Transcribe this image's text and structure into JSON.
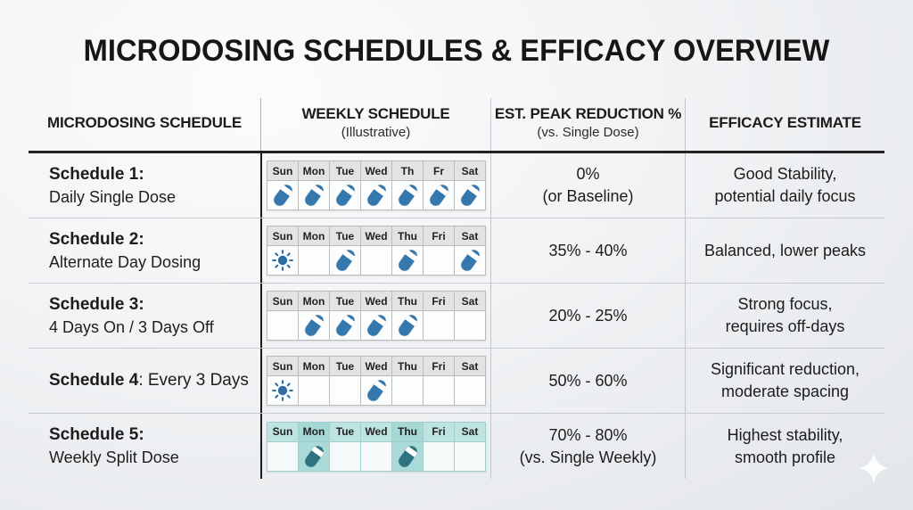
{
  "title": "MICRODOSING SCHEDULES & EFFICACY OVERVIEW",
  "header": {
    "col1": {
      "label": "MICRODOSING SCHEDULE",
      "sub": ""
    },
    "col2": {
      "label": "WEEKLY SCHEDULE",
      "sub": "(Illustrative)"
    },
    "col3": {
      "label": "EST. PEAK REDUCTION %",
      "sub": "(vs. Single Dose)"
    },
    "col4": {
      "label": "EFFICACY ESTIMATE",
      "sub": ""
    }
  },
  "rows": [
    {
      "label_bold": "Schedule 1:",
      "label_after": "",
      "label_line2": "Daily Single Dose",
      "days": [
        "Sun",
        "Mon",
        "Tue",
        "Wed",
        "Th",
        "Fr",
        "Sat"
      ],
      "doses": [
        "pill",
        "pill",
        "pill",
        "pill",
        "pill",
        "pill",
        "pill"
      ],
      "highlight": [],
      "theme": "blue",
      "reduction_line1": "0%",
      "reduction_line2": "(or Baseline)",
      "efficacy_line1": "Good Stability,",
      "efficacy_line2": "potential daily focus"
    },
    {
      "label_bold": "Schedule 2:",
      "label_after": "",
      "label_line2": "Alternate Day Dosing",
      "days": [
        "Sun",
        "Mon",
        "Tue",
        "Wed",
        "Thu",
        "Fri",
        "Sat"
      ],
      "doses": [
        "sun",
        "",
        "pill",
        "",
        "pill",
        "",
        "pill"
      ],
      "highlight": [],
      "theme": "blue",
      "reduction_line1": "35% - 40%",
      "reduction_line2": "",
      "efficacy_line1": "Balanced, lower peaks",
      "efficacy_line2": ""
    },
    {
      "label_bold": "Schedule 3:",
      "label_after": "",
      "label_line2": "4 Days On / 3 Days Off",
      "days": [
        "Sun",
        "Mon",
        "Tue",
        "Wed",
        "Thu",
        "Fri",
        "Sat"
      ],
      "doses": [
        "",
        "pill",
        "pill",
        "pill",
        "pill",
        "",
        ""
      ],
      "highlight": [],
      "theme": "blue",
      "reduction_line1": "20% - 25%",
      "reduction_line2": "",
      "efficacy_line1": "Strong focus,",
      "efficacy_line2": "requires off-days"
    },
    {
      "label_bold": "Schedule 4",
      "label_after": ": Every 3 Days",
      "label_line2": "",
      "days": [
        "Sun",
        "Mon",
        "Tue",
        "Wed",
        "Thu",
        "Fri",
        "Sat"
      ],
      "doses": [
        "sun",
        "",
        "",
        "pill",
        "",
        "",
        ""
      ],
      "highlight": [],
      "theme": "blue",
      "reduction_line1": "50% - 60%",
      "reduction_line2": "",
      "efficacy_line1": "Significant reduction,",
      "efficacy_line2": "moderate spacing"
    },
    {
      "label_bold": "Schedule 5:",
      "label_after": "",
      "label_line2": "Weekly Split Dose",
      "days": [
        "Sun",
        "Mon",
        "Tue",
        "Wed",
        "Thu",
        "Fri",
        "Sat"
      ],
      "doses": [
        "",
        "pill",
        "",
        "",
        "pill",
        "",
        ""
      ],
      "highlight": [
        1,
        4
      ],
      "theme": "teal",
      "reduction_line1": "70% - 80%",
      "reduction_line2": "(vs. Single Weekly)",
      "efficacy_line1": "Highest stability,",
      "efficacy_line2": "smooth profile"
    }
  ],
  "icons": {
    "pill": "pill-icon",
    "sun": "sun-icon",
    "sparkle": "sparkle-icon"
  },
  "colors": {
    "pill_blue": "#3578ad",
    "pill_teal": "#2d7480",
    "sun_blue": "#2e6da4",
    "teal_header": "#bfe3e1",
    "teal_highlight": "#abdbd8",
    "header_rule": "#232323"
  }
}
